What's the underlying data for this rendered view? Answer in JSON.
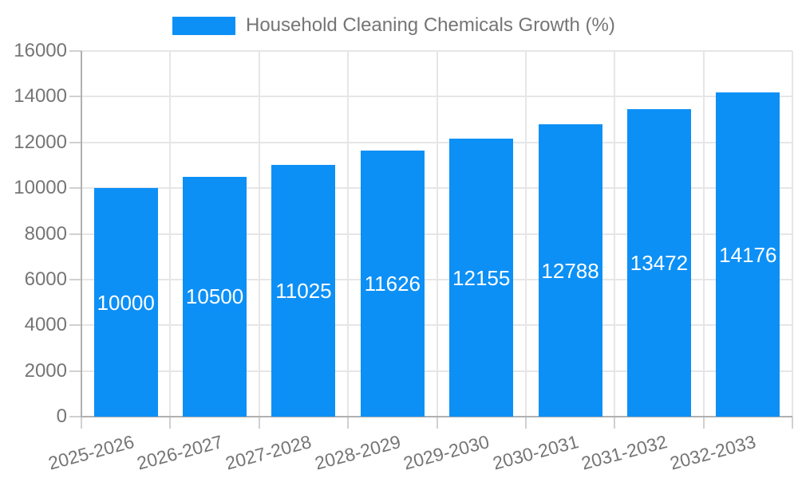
{
  "chart_data": {
    "type": "bar",
    "title": "Household Cleaning Chemicals Growth (%)",
    "legend": {
      "label": "Household Cleaning Chemicals Growth (%)",
      "position": "top"
    },
    "categories": [
      "2025-2026",
      "2026-2027",
      "2027-2028",
      "2028-2029",
      "2029-2030",
      "2030-2031",
      "2031-2032",
      "2032-2033"
    ],
    "values": [
      10000,
      10500,
      11025,
      11626,
      12155,
      12788,
      13472,
      14176
    ],
    "value_labels": [
      "10000",
      "10500",
      "11025",
      "11626",
      "12155",
      "12788",
      "13472",
      "14176"
    ],
    "xlabel": "",
    "ylabel": "",
    "ylim": [
      0,
      16000
    ],
    "yticks": [
      0,
      2000,
      4000,
      6000,
      8000,
      10000,
      12000,
      14000,
      16000
    ],
    "ytick_labels": [
      "0",
      "2000",
      "4000",
      "6000",
      "8000",
      "10000",
      "12000",
      "14000",
      "16000"
    ],
    "grid": true,
    "colors": {
      "bar": "#0d90f6",
      "bar_value_text": "#ffffff",
      "axis_text": "#757575",
      "axis_line": "#b0b0b0",
      "grid_line": "#e6e6e6",
      "tick_line": "#d0d0d0",
      "background": "#ffffff"
    }
  }
}
